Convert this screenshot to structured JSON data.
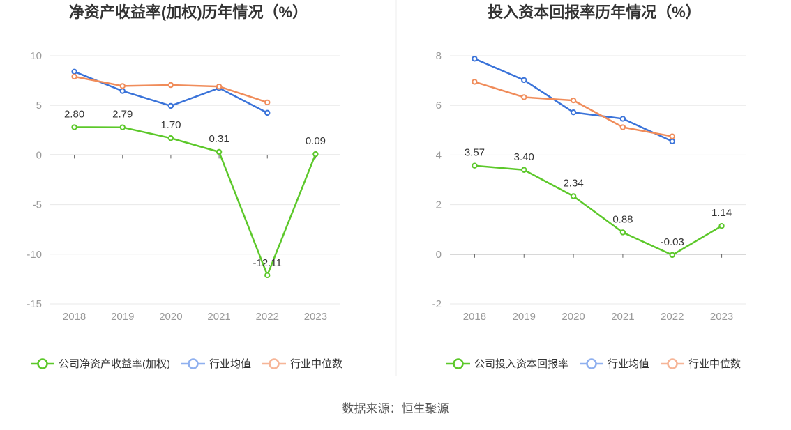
{
  "source": "数据来源：恒生聚源",
  "chart_data": [
    {
      "type": "line",
      "title": "净资产收益率(加权)历年情况（%）",
      "categories": [
        "2018",
        "2019",
        "2020",
        "2021",
        "2022",
        "2023"
      ],
      "ylim": [
        -15,
        10
      ],
      "yticks": [
        10,
        5,
        0,
        -5,
        -10,
        -15
      ],
      "grid": true,
      "legend_position": "bottom",
      "series": [
        {
          "name": "公司净资产收益率(加权)",
          "color": "#5cc82a",
          "values": [
            2.8,
            2.79,
            1.7,
            0.31,
            -12.11,
            0.09
          ],
          "labels": [
            "2.80",
            "2.79",
            "1.70",
            "0.31",
            "-12.11",
            "0.09"
          ]
        },
        {
          "name": "行业均值",
          "color": "#3a73d9",
          "values": [
            8.4,
            6.45,
            4.95,
            6.75,
            4.25,
            null
          ]
        },
        {
          "name": "行业中位数",
          "color": "#f08c5a",
          "values": [
            7.9,
            6.95,
            7.05,
            6.9,
            5.3,
            null
          ]
        }
      ]
    },
    {
      "type": "line",
      "title": "投入资本回报率历年情况（%）",
      "categories": [
        "2018",
        "2019",
        "2020",
        "2021",
        "2022",
        "2023"
      ],
      "ylim": [
        -2,
        8
      ],
      "yticks": [
        8,
        6,
        4,
        2,
        0,
        -2
      ],
      "grid": true,
      "legend_position": "bottom",
      "series": [
        {
          "name": "公司投入资本回报率",
          "color": "#5cc82a",
          "values": [
            3.57,
            3.4,
            2.34,
            0.88,
            -0.03,
            1.14
          ],
          "labels": [
            "3.57",
            "3.40",
            "2.34",
            "0.88",
            "-0.03",
            "1.14"
          ]
        },
        {
          "name": "行业均值",
          "color": "#3a73d9",
          "values": [
            7.88,
            7.02,
            5.72,
            5.46,
            4.55,
            null
          ]
        },
        {
          "name": "行业中位数",
          "color": "#f08c5a",
          "values": [
            6.95,
            6.33,
            6.2,
            5.12,
            4.75,
            null
          ]
        }
      ]
    }
  ]
}
